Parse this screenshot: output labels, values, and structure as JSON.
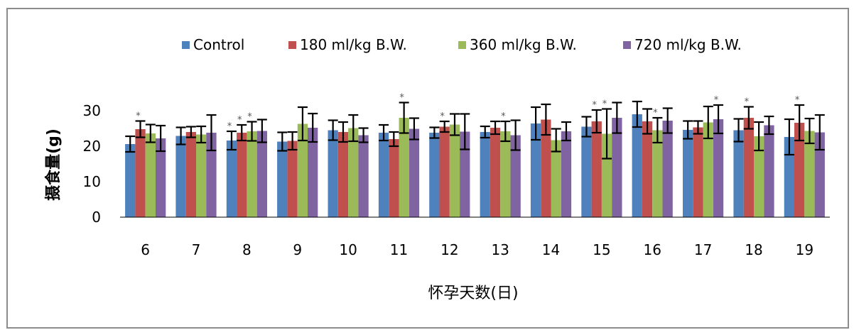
{
  "chart_data": {
    "type": "bar",
    "title": "",
    "xlabel": "怀孕天数(日)",
    "ylabel": "摄食量(g)",
    "ylim": [
      0,
      35
    ],
    "yticks": [
      0,
      10,
      20,
      30
    ],
    "grid": false,
    "legend_position": "top",
    "categories": [
      "6",
      "7",
      "8",
      "9",
      "10",
      "11",
      "12",
      "13",
      "14",
      "15",
      "16",
      "17",
      "18",
      "19"
    ],
    "series": [
      {
        "name": "Control",
        "color": "#4f81bd",
        "values": [
          20.6,
          22.9,
          21.6,
          21.3,
          24.5,
          23.8,
          23.8,
          24.0,
          26.4,
          25.5,
          29.0,
          24.6,
          24.5,
          22.6
        ],
        "errors": [
          2.2,
          2.4,
          2.6,
          2.6,
          2.8,
          2.2,
          1.5,
          1.6,
          4.6,
          2.8,
          3.6,
          2.5,
          3.2,
          5.0
        ],
        "stars": [
          "",
          "",
          "*",
          "",
          "",
          "",
          "",
          "",
          "",
          "",
          "",
          "",
          "",
          ""
        ]
      },
      {
        "name": "180 ml/kg B.W.",
        "color": "#c0504d",
        "values": [
          24.8,
          24.0,
          23.8,
          21.5,
          24.0,
          22.0,
          25.5,
          25.2,
          27.5,
          27.0,
          27.0,
          25.3,
          28.0,
          26.6
        ],
        "errors": [
          2.3,
          1.5,
          2.2,
          2.5,
          2.8,
          2.0,
          1.5,
          1.8,
          4.3,
          3.2,
          3.5,
          1.8,
          3.1,
          5.0
        ],
        "stars": [
          "*",
          "",
          "*",
          "",
          "",
          "",
          "*",
          "",
          "",
          "*",
          "",
          "",
          "*",
          "*"
        ]
      },
      {
        "name": "360 ml/kg B.W.",
        "color": "#9bbb59",
        "values": [
          23.6,
          23.3,
          24.2,
          26.3,
          25.1,
          28.0,
          26.1,
          24.2,
          21.7,
          23.5,
          24.5,
          26.7,
          22.8,
          24.3
        ],
        "errors": [
          2.5,
          2.3,
          2.7,
          4.7,
          3.7,
          4.3,
          3.0,
          2.8,
          3.2,
          7.0,
          3.5,
          4.5,
          4.0,
          3.5
        ],
        "stars": [
          "",
          "",
          "*",
          "",
          "",
          "*",
          "",
          "*",
          "",
          "*",
          "*",
          "",
          "",
          ""
        ]
      },
      {
        "name": "720 ml/kg B.W.",
        "color": "#8064a2",
        "values": [
          22.2,
          23.8,
          24.3,
          25.2,
          23.1,
          24.9,
          24.1,
          23.1,
          24.2,
          28.0,
          27.2,
          27.6,
          25.9,
          23.9
        ],
        "errors": [
          3.6,
          5.0,
          3.2,
          4.0,
          2.0,
          3.0,
          5.0,
          4.2,
          2.6,
          4.3,
          3.5,
          4.0,
          2.5,
          4.9
        ],
        "stars": [
          "",
          "",
          "",
          "",
          "",
          "",
          "",
          "",
          "",
          "",
          "",
          "*",
          "",
          ""
        ]
      }
    ]
  }
}
